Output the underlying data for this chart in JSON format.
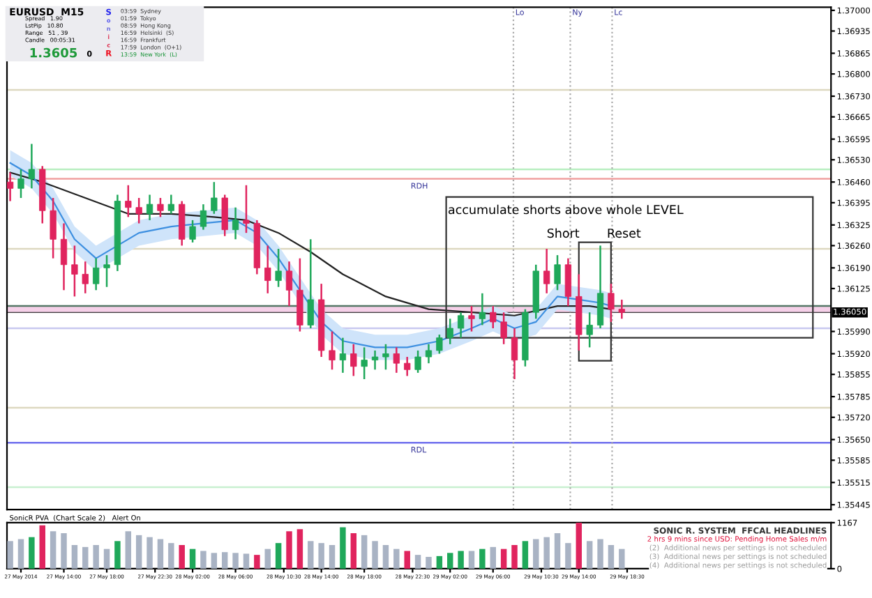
{
  "chart_data": [
    {
      "type": "candlestick",
      "tick_labels": "y",
      "grid": false,
      "xlim": [
        "2014-05-27T08:42",
        "2014-05-30T13:30"
      ],
      "ylim": [
        1.3543,
        1.3701
      ],
      "yticks": [
        {
          "value": 1.37,
          "label": "1.37000"
        },
        {
          "value": 1.36935,
          "label": "1.36935"
        },
        {
          "value": 1.36865,
          "label": "1.36865"
        },
        {
          "value": 1.368,
          "label": "1.36800"
        },
        {
          "value": 1.3673,
          "label": "1.36730"
        },
        {
          "value": 1.36665,
          "label": "1.36665"
        },
        {
          "value": 1.36595,
          "label": "1.36595"
        },
        {
          "value": 1.3653,
          "label": "1.36530"
        },
        {
          "value": 1.3646,
          "label": "1.36460"
        },
        {
          "value": 1.36395,
          "label": "1.36395"
        },
        {
          "value": 1.36325,
          "label": "1.36325"
        },
        {
          "value": 1.3626,
          "label": "1.36260"
        },
        {
          "value": 1.3619,
          "label": "1.36190"
        },
        {
          "value": 1.36125,
          "label": "1.36125"
        },
        {
          "value": 1.3599,
          "label": "1.35990"
        },
        {
          "value": 1.3592,
          "label": "1.35920"
        },
        {
          "value": 1.35855,
          "label": "1.35855"
        },
        {
          "value": 1.35785,
          "label": "1.35785"
        },
        {
          "value": 1.3572,
          "label": "1.35720"
        },
        {
          "value": 1.3565,
          "label": "1.35650"
        },
        {
          "value": 1.35585,
          "label": "1.35585"
        },
        {
          "value": 1.35515,
          "label": "1.35515"
        },
        {
          "value": 1.35445,
          "label": "1.35445"
        }
      ],
      "x": [
        "2014-05-27T09:00",
        "2014-05-27T10:00",
        "2014-05-27T11:00",
        "2014-05-27T12:00",
        "2014-05-27T13:00",
        "2014-05-27T14:00",
        "2014-05-27T15:00",
        "2014-05-27T16:00",
        "2014-05-27T17:00",
        "2014-05-27T18:00",
        "2014-05-27T19:00",
        "2014-05-27T20:00",
        "2014-05-27T21:00",
        "2014-05-27T22:00",
        "2014-05-27T23:00",
        "2014-05-28T00:00",
        "2014-05-28T01:00",
        "2014-05-28T02:00",
        "2014-05-28T03:00",
        "2014-05-28T04:00",
        "2014-05-28T05:00",
        "2014-05-28T06:00",
        "2014-05-28T07:00",
        "2014-05-28T08:00",
        "2014-05-28T09:00",
        "2014-05-28T10:00",
        "2014-05-28T11:00",
        "2014-05-28T12:00",
        "2014-05-28T13:00",
        "2014-05-28T14:00",
        "2014-05-28T15:00",
        "2014-05-28T16:00",
        "2014-05-28T17:00",
        "2014-05-28T18:00",
        "2014-05-28T19:00",
        "2014-05-28T20:00",
        "2014-05-28T21:00",
        "2014-05-28T22:00",
        "2014-05-28T23:00",
        "2014-05-29T00:00",
        "2014-05-29T01:00",
        "2014-05-29T02:00",
        "2014-05-29T03:00",
        "2014-05-29T04:00",
        "2014-05-29T05:00",
        "2014-05-29T06:00",
        "2014-05-29T07:00",
        "2014-05-29T08:00",
        "2014-05-29T09:00",
        "2014-05-29T10:00",
        "2014-05-29T11:00",
        "2014-05-29T12:00",
        "2014-05-29T13:00",
        "2014-05-29T14:00",
        "2014-05-29T15:00",
        "2014-05-29T16:00",
        "2014-05-29T17:00",
        "2014-05-29T18:00"
      ],
      "ohlc": [
        [
          1.3646,
          1.3649,
          1.364,
          1.3644
        ],
        [
          1.3644,
          1.365,
          1.3641,
          1.3647
        ],
        [
          1.3647,
          1.3658,
          1.3644,
          1.365
        ],
        [
          1.365,
          1.3651,
          1.3633,
          1.3637
        ],
        [
          1.3637,
          1.3641,
          1.3622,
          1.3628
        ],
        [
          1.3628,
          1.3633,
          1.3612,
          1.362
        ],
        [
          1.362,
          1.3626,
          1.361,
          1.3617
        ],
        [
          1.3617,
          1.3621,
          1.3611,
          1.3614
        ],
        [
          1.3614,
          1.3622,
          1.3612,
          1.3619
        ],
        [
          1.3619,
          1.3623,
          1.3613,
          1.362
        ],
        [
          1.362,
          1.3642,
          1.3618,
          1.364
        ],
        [
          1.364,
          1.3645,
          1.3635,
          1.3638
        ],
        [
          1.3638,
          1.3641,
          1.3633,
          1.3636
        ],
        [
          1.3636,
          1.3642,
          1.3634,
          1.3639
        ],
        [
          1.3639,
          1.3641,
          1.3635,
          1.3637
        ],
        [
          1.3637,
          1.3642,
          1.3636,
          1.3639
        ],
        [
          1.3639,
          1.364,
          1.3626,
          1.3628
        ],
        [
          1.3628,
          1.3634,
          1.3627,
          1.3632
        ],
        [
          1.3632,
          1.3639,
          1.3631,
          1.3637
        ],
        [
          1.3637,
          1.3646,
          1.3636,
          1.3641
        ],
        [
          1.3641,
          1.3642,
          1.3629,
          1.3631
        ],
        [
          1.3631,
          1.3638,
          1.3628,
          1.3634
        ],
        [
          1.3634,
          1.3645,
          1.363,
          1.3633
        ],
        [
          1.3633,
          1.3634,
          1.3617,
          1.3619
        ],
        [
          1.3619,
          1.3626,
          1.3611,
          1.3615
        ],
        [
          1.3615,
          1.3625,
          1.3613,
          1.3618
        ],
        [
          1.3618,
          1.3621,
          1.3607,
          1.3612
        ],
        [
          1.3612,
          1.3622,
          1.3599,
          1.3601
        ],
        [
          1.3601,
          1.3628,
          1.36,
          1.3609
        ],
        [
          1.3609,
          1.3614,
          1.3591,
          1.3593
        ],
        [
          1.3593,
          1.3599,
          1.3587,
          1.359
        ],
        [
          1.359,
          1.3597,
          1.3586,
          1.3592
        ],
        [
          1.3592,
          1.3595,
          1.3585,
          1.3588
        ],
        [
          1.3588,
          1.3594,
          1.3584,
          1.359
        ],
        [
          1.359,
          1.3593,
          1.3587,
          1.3591
        ],
        [
          1.3591,
          1.3595,
          1.3587,
          1.3592
        ],
        [
          1.3592,
          1.3594,
          1.3586,
          1.3589
        ],
        [
          1.3589,
          1.3591,
          1.3585,
          1.3587
        ],
        [
          1.3587,
          1.3593,
          1.3586,
          1.3591
        ],
        [
          1.3591,
          1.3595,
          1.3589,
          1.3593
        ],
        [
          1.3593,
          1.3598,
          1.3592,
          1.3597
        ],
        [
          1.3597,
          1.3603,
          1.3595,
          1.36
        ],
        [
          1.36,
          1.3605,
          1.3597,
          1.3604
        ],
        [
          1.3604,
          1.3607,
          1.3599,
          1.3603
        ],
        [
          1.3603,
          1.3611,
          1.3601,
          1.3605
        ],
        [
          1.3605,
          1.3607,
          1.36,
          1.3602
        ],
        [
          1.3602,
          1.3605,
          1.3595,
          1.3597
        ],
        [
          1.3597,
          1.36,
          1.3584,
          1.359
        ],
        [
          1.359,
          1.3606,
          1.3588,
          1.3605
        ],
        [
          1.3605,
          1.362,
          1.3603,
          1.3618
        ],
        [
          1.3618,
          1.3625,
          1.3611,
          1.3614
        ],
        [
          1.3614,
          1.3623,
          1.3612,
          1.362
        ],
        [
          1.362,
          1.3622,
          1.3607,
          1.361
        ],
        [
          1.361,
          1.3617,
          1.3593,
          1.3598
        ],
        [
          1.3598,
          1.3605,
          1.3594,
          1.3601
        ],
        [
          1.3601,
          1.3626,
          1.36,
          1.3611
        ],
        [
          1.3611,
          1.3614,
          1.3602,
          1.3606
        ],
        [
          1.3606,
          1.3609,
          1.3603,
          1.3605
        ]
      ],
      "colors": [
        "#e0245e",
        "#1fa85a",
        "#1fa85a",
        "#e0245e",
        "#e0245e",
        "#e0245e",
        "#e0245e",
        "#e0245e",
        "#1fa85a",
        "#1fa85a",
        "#1fa85a",
        "#e0245e",
        "#e0245e",
        "#1fa85a",
        "#e0245e",
        "#1fa85a",
        "#e0245e",
        "#1fa85a",
        "#1fa85a",
        "#1fa85a",
        "#e0245e",
        "#1fa85a",
        "#e0245e",
        "#e0245e",
        "#e0245e",
        "#1fa85a",
        "#e0245e",
        "#e0245e",
        "#1fa85a",
        "#e0245e",
        "#e0245e",
        "#1fa85a",
        "#e0245e",
        "#1fa85a",
        "#1fa85a",
        "#1fa85a",
        "#e0245e",
        "#e0245e",
        "#1fa85a",
        "#1fa85a",
        "#1fa85a",
        "#1fa85a",
        "#1fa85a",
        "#e0245e",
        "#1fa85a",
        "#e0245e",
        "#e0245e",
        "#e0245e",
        "#1fa85a",
        "#1fa85a",
        "#e0245e",
        "#1fa85a",
        "#e0245e",
        "#e0245e",
        "#1fa85a",
        "#1fa85a",
        "#e0245e",
        "#e0245e"
      ],
      "series": [
        {
          "type": "line",
          "color": "#222222",
          "x": [
            "2014-05-27T09:00",
            "2014-05-27T12:00",
            "2014-05-27T16:00",
            "2014-05-27T20:00",
            "2014-05-28T00:00",
            "2014-05-28T04:00",
            "2014-05-28T07:00",
            "2014-05-28T10:00",
            "2014-05-28T13:00",
            "2014-05-28T16:00",
            "2014-05-28T20:00",
            "2014-05-29T00:00",
            "2014-05-29T04:00",
            "2014-05-29T08:00",
            "2014-05-29T12:00",
            "2014-05-29T15:00",
            "2014-05-29T17:00"
          ],
          "values": [
            1.3649,
            1.3646,
            1.3641,
            1.3636,
            1.3636,
            1.3635,
            1.3634,
            1.363,
            1.3624,
            1.3617,
            1.361,
            1.3606,
            1.3605,
            1.3604,
            1.3607,
            1.3607,
            1.3606
          ]
        },
        {
          "type": "line",
          "color": "#3d8fe0",
          "x": [
            "2014-05-27T09:00",
            "2014-05-27T11:00",
            "2014-05-27T13:00",
            "2014-05-27T15:00",
            "2014-05-27T17:00",
            "2014-05-27T19:00",
            "2014-05-27T21:00",
            "2014-05-28T00:00",
            "2014-05-28T03:00",
            "2014-05-28T06:00",
            "2014-05-28T08:00",
            "2014-05-28T10:00",
            "2014-05-28T12:00",
            "2014-05-28T14:00",
            "2014-05-28T16:00",
            "2014-05-28T19:00",
            "2014-05-28T22:00",
            "2014-05-29T01:00",
            "2014-05-29T04:00",
            "2014-05-29T06:00",
            "2014-05-29T08:00",
            "2014-05-29T10:00",
            "2014-05-29T12:00",
            "2014-05-29T14:00",
            "2014-05-29T16:00",
            "2014-05-29T17:00"
          ],
          "values": [
            1.3652,
            1.3648,
            1.364,
            1.3628,
            1.3622,
            1.3626,
            1.363,
            1.3632,
            1.3633,
            1.3634,
            1.363,
            1.3622,
            1.3612,
            1.3602,
            1.3596,
            1.3594,
            1.3594,
            1.3596,
            1.36,
            1.3603,
            1.36,
            1.3602,
            1.361,
            1.3609,
            1.3608,
            1.3607
          ],
          "lower": [
            1.3648,
            1.3644,
            1.3636,
            1.3624,
            1.3618,
            1.3622,
            1.3626,
            1.3628,
            1.3629,
            1.363,
            1.3626,
            1.3618,
            1.3608,
            1.3598,
            1.3592,
            1.359,
            1.359,
            1.3592,
            1.3596,
            1.3599,
            1.3596,
            1.3598,
            1.3606,
            1.3605,
            1.3604,
            1.3603
          ],
          "upper": [
            1.3656,
            1.3652,
            1.3644,
            1.3632,
            1.3626,
            1.363,
            1.3634,
            1.3636,
            1.3637,
            1.3638,
            1.3634,
            1.3626,
            1.3616,
            1.3606,
            1.36,
            1.3598,
            1.3598,
            1.36,
            1.3604,
            1.3607,
            1.3604,
            1.3606,
            1.3614,
            1.3613,
            1.3612,
            1.3611
          ]
        }
      ],
      "ref_lines": [
        {
          "axis": "y",
          "value": 1.3675,
          "color": "#ddd8c0"
        },
        {
          "axis": "y",
          "value": 1.365,
          "color": "#b8eec0"
        },
        {
          "axis": "y",
          "value": 1.3647,
          "label": "RDH",
          "color": "#f0a0a0"
        },
        {
          "axis": "y",
          "value": 1.3625,
          "color": "#ddd8c0"
        },
        {
          "axis": "y",
          "value": 1.3607,
          "color": "#557766"
        },
        {
          "axis": "y",
          "value": 1.36,
          "color": "#c8c8f0"
        },
        {
          "axis": "y",
          "value": 1.3575,
          "color": "#ddd8c0"
        },
        {
          "axis": "y",
          "value": 1.3564,
          "label": "RDL",
          "color": "#7070ee"
        },
        {
          "axis": "y",
          "value": 1.355,
          "color": "#c8f0d0"
        },
        {
          "axis": "y",
          "value": 1.3605,
          "label": "1.36050",
          "color": "#000000",
          "line_style": "solid"
        },
        {
          "axis": "x",
          "value": "2014-05-29T07:54",
          "label": "Lo",
          "color": "#aaaaaa",
          "line_style": "dotted"
        },
        {
          "axis": "x",
          "value": "2014-05-29T13:12",
          "label": "Ny",
          "color": "#aaaaaa",
          "line_style": "dotted"
        },
        {
          "axis": "x",
          "value": "2014-05-29T17:06",
          "label": "Lc",
          "color": "#aaaaaa",
          "line_style": "dotted"
        }
      ],
      "bands": [
        {
          "axis": "y",
          "from": 1.3605,
          "to": 1.3607,
          "color": "#f5d0e8"
        }
      ],
      "annotations": [
        "EURUSD  M15",
        "Spread   1.90",
        "LstPip   10.80",
        "Range   51 , 39",
        "Candle   00:05:31",
        "1.3605",
        "0",
        "S",
        "o",
        "n",
        "i",
        "c",
        "R",
        "03:59  Sydney",
        "01:59  Tokyo",
        "08:59  Hong Kong",
        "16:59  Helsinki  (S)",
        "16:59  Frankfurt",
        "17:59  London  (O+1)",
        "13:59  New York  (L)",
        "accumulate shorts above whole LEVEL",
        "Short",
        "Reset"
      ]
    },
    {
      "type": "bar",
      "grid": false,
      "xlim": [
        "2014-05-27T08:42",
        "2014-05-30T13:30"
      ],
      "ylim": [
        0,
        1167
      ],
      "yticks": [
        1167,
        0
      ],
      "xticks": [
        {
          "value": "2014-05-27T10:00",
          "label": "27 May 2014"
        },
        {
          "value": "2014-05-27T14:00",
          "label": "27 May 14:00"
        },
        {
          "value": "2014-05-27T18:00",
          "label": "27 May 18:00"
        },
        {
          "value": "2014-05-27T22:30",
          "label": "27 May 22:30"
        },
        {
          "value": "2014-05-28T02:00",
          "label": "28 May 02:00"
        },
        {
          "value": "2014-05-28T06:00",
          "label": "28 May 06:00"
        },
        {
          "value": "2014-05-28T10:30",
          "label": "28 May 10:30"
        },
        {
          "value": "2014-05-28T14:00",
          "label": "28 May 14:00"
        },
        {
          "value": "2014-05-28T18:00",
          "label": "28 May 18:00"
        },
        {
          "value": "2014-05-28T22:30",
          "label": "28 May 22:30"
        },
        {
          "value": "2014-05-29T02:00",
          "label": "29 May 02:00"
        },
        {
          "value": "2014-05-29T06:00",
          "label": "29 May 06:00"
        },
        {
          "value": "2014-05-29T10:30",
          "label": "29 May 10:30"
        },
        {
          "value": "2014-05-29T14:00",
          "label": "29 May 14:00"
        },
        {
          "value": "2014-05-29T18:30",
          "label": "29 May 18:30"
        }
      ],
      "x": [
        "2014-05-27T09:00",
        "2014-05-27T10:00",
        "2014-05-27T11:00",
        "2014-05-27T12:00",
        "2014-05-27T13:00",
        "2014-05-27T14:00",
        "2014-05-27T15:00",
        "2014-05-27T16:00",
        "2014-05-27T17:00",
        "2014-05-27T18:00",
        "2014-05-27T19:00",
        "2014-05-27T20:00",
        "2014-05-27T21:00",
        "2014-05-27T22:00",
        "2014-05-27T23:00",
        "2014-05-28T00:00",
        "2014-05-28T01:00",
        "2014-05-28T02:00",
        "2014-05-28T03:00",
        "2014-05-28T04:00",
        "2014-05-28T05:00",
        "2014-05-28T06:00",
        "2014-05-28T07:00",
        "2014-05-28T08:00",
        "2014-05-28T09:00",
        "2014-05-28T10:00",
        "2014-05-28T11:00",
        "2014-05-28T12:00",
        "2014-05-28T13:00",
        "2014-05-28T14:00",
        "2014-05-28T15:00",
        "2014-05-28T16:00",
        "2014-05-28T17:00",
        "2014-05-28T18:00",
        "2014-05-28T19:00",
        "2014-05-28T20:00",
        "2014-05-28T21:00",
        "2014-05-28T22:00",
        "2014-05-28T23:00",
        "2014-05-29T00:00",
        "2014-05-29T01:00",
        "2014-05-29T02:00",
        "2014-05-29T03:00",
        "2014-05-29T04:00",
        "2014-05-29T05:00",
        "2014-05-29T06:00",
        "2014-05-29T07:00",
        "2014-05-29T08:00",
        "2014-05-29T09:00",
        "2014-05-29T10:00",
        "2014-05-29T11:00",
        "2014-05-29T12:00",
        "2014-05-29T13:00",
        "2014-05-29T14:00",
        "2014-05-29T15:00",
        "2014-05-29T16:00",
        "2014-05-29T17:00",
        "2014-05-29T18:00"
      ],
      "values": [
        700,
        750,
        800,
        1100,
        950,
        900,
        600,
        550,
        600,
        500,
        700,
        950,
        850,
        800,
        750,
        650,
        600,
        500,
        450,
        400,
        420,
        400,
        380,
        350,
        500,
        650,
        950,
        1000,
        700,
        650,
        600,
        1050,
        900,
        850,
        700,
        600,
        500,
        450,
        350,
        300,
        320,
        400,
        450,
        450,
        500,
        550,
        500,
        600,
        700,
        750,
        800,
        900,
        650,
        1167,
        700,
        750,
        600,
        500
      ],
      "colors": [
        "#a9b3c4",
        "#a9b3c4",
        "#1fa85a",
        "#e0245e",
        "#a9b3c4",
        "#a9b3c4",
        "#a9b3c4",
        "#a9b3c4",
        "#a9b3c4",
        "#a9b3c4",
        "#1fa85a",
        "#a9b3c4",
        "#a9b3c4",
        "#a9b3c4",
        "#a9b3c4",
        "#a9b3c4",
        "#e0245e",
        "#1fa85a",
        "#a9b3c4",
        "#a9b3c4",
        "#a9b3c4",
        "#a9b3c4",
        "#a9b3c4",
        "#e0245e",
        "#a9b3c4",
        "#1fa85a",
        "#e0245e",
        "#e0245e",
        "#a9b3c4",
        "#a9b3c4",
        "#a9b3c4",
        "#1fa85a",
        "#e0245e",
        "#a9b3c4",
        "#a9b3c4",
        "#a9b3c4",
        "#a9b3c4",
        "#e0245e",
        "#a9b3c4",
        "#a9b3c4",
        "#1fa85a",
        "#1fa85a",
        "#1fa85a",
        "#a9b3c4",
        "#1fa85a",
        "#a9b3c4",
        "#e0245e",
        "#e0245e",
        "#1fa85a",
        "#a9b3c4",
        "#a9b3c4",
        "#a9b3c4",
        "#a9b3c4",
        "#e0245e",
        "#a9b3c4",
        "#a9b3c4",
        "#a9b3c4",
        "#a9b3c4"
      ],
      "annotations": [
        "SonicR PVA  (Chart Scale 2)   Alert On",
        "SONIC R. SYSTEM  FFCAL HEADLINES",
        "2 hrs 9 mins since USD: Pending Home Sales m/m",
        "(2)  Additional news per settings is not scheduled",
        "(3)  Additional news per settings is not scheduled",
        "(4)  Additional news per settings is not scheduled"
      ]
    }
  ]
}
